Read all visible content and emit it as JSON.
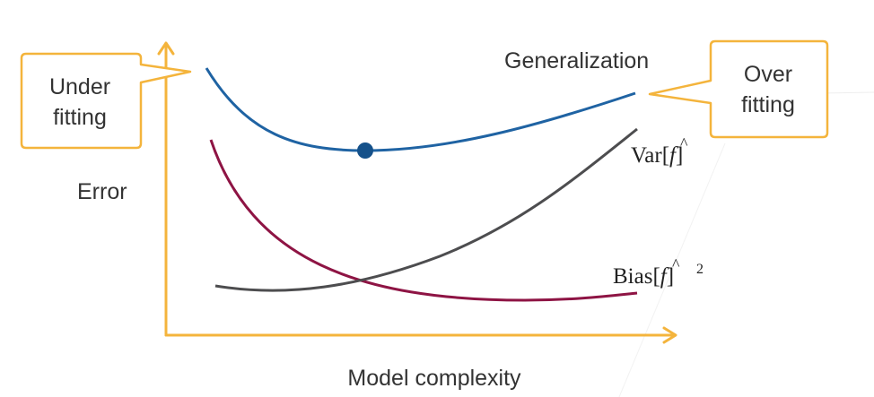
{
  "labels": {
    "generalization": "Generalization",
    "error": "Error",
    "model_complexity": "Model complexity",
    "variance": "Var[",
    "variance_f": "f",
    "variance_close": "]",
    "bias": "Bias[",
    "bias_f": "f",
    "bias_close": "]",
    "bias_exp": "2",
    "hat": "^"
  },
  "callouts": {
    "under": [
      "Under",
      "fitting"
    ],
    "over": [
      "Over",
      "fitting"
    ]
  },
  "colors": {
    "axis": "#f4b43c",
    "generalization": "#1f63a3",
    "bias": "#8e1444",
    "variance": "#4d4d4f",
    "point": "#15518a",
    "text": "#333333"
  }
}
